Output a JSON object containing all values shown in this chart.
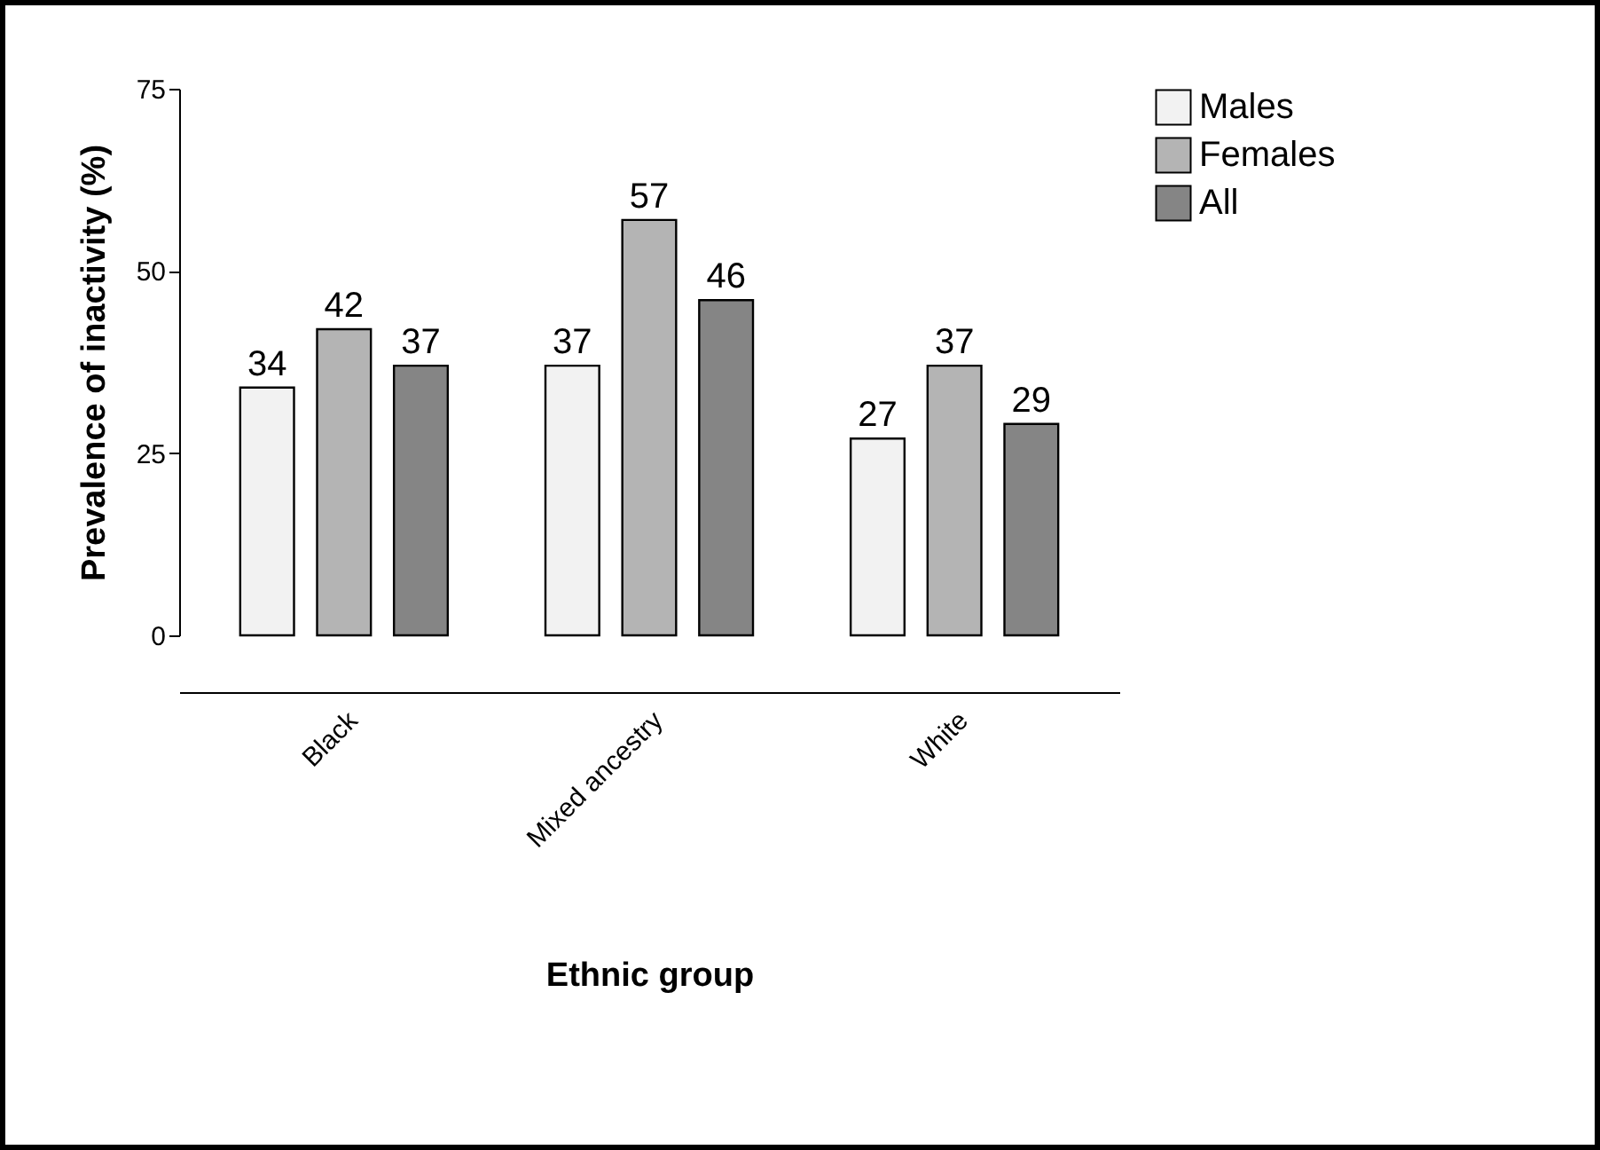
{
  "chart_data": {
    "type": "bar",
    "xlabel": "Ethnic group",
    "ylabel": "Prevalence of inactivity (%)",
    "categories": [
      "Black",
      "Mixed ancestry",
      "White"
    ],
    "series": [
      {
        "name": "Males",
        "color": "#f2f2f2",
        "values": [
          34,
          37,
          27
        ]
      },
      {
        "name": "Females",
        "color": "#b4b4b4",
        "values": [
          42,
          57,
          37
        ]
      },
      {
        "name": "All",
        "color": "#858585",
        "values": [
          37,
          46,
          29
        ]
      }
    ],
    "ylim": [
      0,
      75
    ],
    "yticks": [
      0,
      25,
      50,
      75
    ],
    "data_labels": true,
    "grid": false,
    "legend": "top right"
  }
}
